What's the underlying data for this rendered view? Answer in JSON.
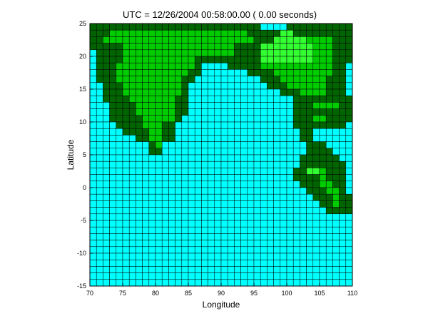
{
  "chart_data": {
    "type": "heatmap",
    "title": "UTC = 12/26/2004 00:58:00.00  (  0.00 seconds)",
    "xlabel": "Longitude",
    "ylabel": "Latitude",
    "xlim": [
      70,
      110
    ],
    "ylim": [
      -15,
      25
    ],
    "xticks": [
      "70",
      "75",
      "80",
      "85",
      "90",
      "95",
      "100",
      "105",
      "110"
    ],
    "yticks": [
      "-15",
      "-10",
      "-5",
      "0",
      "5",
      "10",
      "15",
      "20",
      "25"
    ],
    "cell_size_deg": 1,
    "grid": true,
    "colors": {
      "water": "#00ffff",
      "land_low": "#006400",
      "land_mid": "#00cc00",
      "land_high": "#33ff33",
      "upland": "#aaee66",
      "highland": "#cc9966",
      "peak": "#ffffff",
      "gridline": "#000000"
    },
    "cells": [
      "DDDDDDDDDDDDDDDDDDDDDDDDDDWWWWDDDDDDDDDD",
      "DDDMMMMMMMMMMMMMMMMMMMMMDDDDDLLDDDDDDDDD",
      "DDMMMMMMMMMMMMMMMMMMMMMMMDDDLLLLLMMMMDDD",
      "DDDDDMMMMMMMMMMMMMMMMMDDDDLLLLLLLLMMMDDD",
      "WDDDDMMMMMMMMMMMMMMMMMDDDDLLLLLLLLMMMDDD",
      "WDDDDMMMMMMMMMMMDDDDDDDDDDLLLLLLLLMMMDDD",
      "WDDDMMMMMMMMMMMMDWWWWDDDDDMMMMMMMMMMMDDW",
      "WDDDMMMMMMMMMMMDDWWWWWWWDDDDMMMMMMMMMDDW",
      "WDDDMMMMMMMMMMDDWWWWWWWWWWDDDMMMMMMMDDDW",
      "WWDDDMMMMMMMMMDWWWWWWWWWWWWDDDMMMMMMDDDW",
      "WWDDDMMMMMMMMMDWWWWWWWWWWWWWWDDDMMMMDDDW",
      "WWDDDDMMMMMMMDDWWWWWWWWWWWWWWWWDDDDDDDDD",
      "WWWDDDDMMMMMMDDWWWWWWWWWWWWWWWWDDDMMMMDD",
      "WWWDDDDMMMMMMDDWWWWWWWWWWWWWWWWDDDDDDDDD",
      "WWWDDDDDMMMMMDWWWWWWWWWWWWWWWWWDDDMMDDDD",
      "WWWWDDDDMMMDDWWWWWWWWWWWWWWWWWWDDDDDDDDW",
      "WWWWWDDDDMMDDWWWWWWWWWWWWWWWWWWWDDWWWWWW",
      "WWWWWWWDDMMDDWWWWWWWWWWWWWWWWWWWDDWWWWWW",
      "WWWWWWWWWDMWWWWWWWWWWWWWWWWWWWWWWDDDWWWW",
      "WWWWWWWWWDDWWWWWWWWWWWWWWWWWWWWWWDDDDWWW",
      "WWWWWWWWWWWWWWWWWWWWWWWWWWWWWWWWDDDDDDWW",
      "WWWWWWWWWWWWWWWWWWWWWWWWWWWWWWWWDDDDDDDW",
      "WWWWWWWWWWWWWWWWWWWWWWWWWWWWWWWDDLLMDDDW",
      "WWWWWWWWWWWWWWWWWWWWWWWWWWWWWWWDDDDMDDDW",
      "WWWWWWWWWWWWWWWWWWWWWWWWWWWWWWWWDDDMMDDW",
      "WWWWWWWWWWWWWWWWWWWWWWWWWWWWWWWWWDDDMMDW",
      "WWWWWWWWWWWWWWWWWWWWWWWWWWWWWWWWWWDDDMDD",
      "WWWWWWWWWWWWWWWWWWWWWWWWWWWWWWWWWWWDDMDD",
      "WWWWWWWWWWWWWWWWWWWWWWWWWWWWWWWWWWWWDDDD",
      "WWWWWWWWWWWWWWWWWWWWWWWWWWWWWWWWWWWWWWWW",
      "WWWWWWWWWWWWWWWWWWWWWWWWWWWWWWWWWWWWWWWW",
      "WWWWWWWWWWWWWWWWWWWWWWWWWWWWWWWWWWWWWWWW",
      "WWWWWWWWWWWWWWWWWWWWWWWWWWWWWWWWWWWWWWWW",
      "WWWWWWWWWWWWWWWWWWWWWWWWWWWWWWWWWWWWWWWW",
      "WWWWWWWWWWWWWWWWWWWWWWWWWWWWWWWWWWWWWWWW",
      "WWWWWWWWWWWWWWWWWWWWWWWWWWWWWWWWWWWWWWWW",
      "WWWWWWWWWWWWWWWWWWWWWWWWWWWWWWWWWWWWWWWW",
      "WWWWWWWWWWWWWWWWWWWWWWWWWWWWWWWWWWWWWWWW",
      "WWWWWWWWWWWWWWWWWWWWWWWWWWWWWWWWWWWWWWWW",
      "WWWWWWWWWWWWWWWWWWWWWWWWWWWWWWWWWWWWWWWW"
    ]
  }
}
